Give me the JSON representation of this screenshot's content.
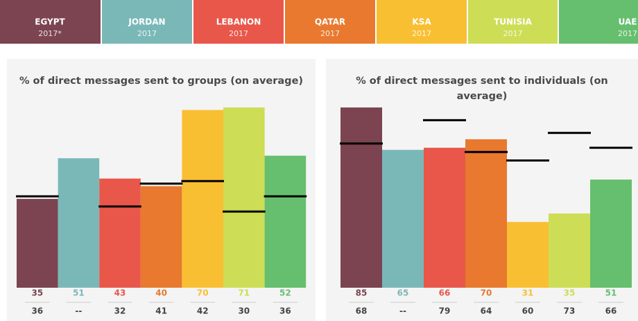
{
  "header": {
    "tiles": [
      {
        "name": "EGYPT",
        "year": "2017*",
        "color": "#7b4450"
      },
      {
        "name": "JORDAN",
        "year": "2017",
        "color": "#7ab8b8"
      },
      {
        "name": "LEBANON",
        "year": "2017",
        "color": "#e8574a"
      },
      {
        "name": "QATAR",
        "year": "2017",
        "color": "#e8792f"
      },
      {
        "name": "KSA",
        "year": "2017",
        "color": "#f9bf33"
      },
      {
        "name": "TUNISIA",
        "year": "2017",
        "color": "#cddd55"
      },
      {
        "name": "UAE",
        "year": "2017",
        "color": "#66bf6e"
      }
    ]
  },
  "chart_data": [
    {
      "type": "bar",
      "title": "% of direct messages sent to groups (on average)",
      "values": [
        35,
        51,
        43,
        40,
        70,
        71,
        52
      ],
      "colors": [
        "#7b4450",
        "#7ab8b8",
        "#e8574a",
        "#e8792f",
        "#f9bf33",
        "#cddd55",
        "#66bf6e"
      ],
      "markers": [
        36,
        null,
        32,
        41,
        42,
        30,
        36
      ],
      "missing_label": "--",
      "ylim": [
        0,
        71
      ]
    },
    {
      "type": "bar",
      "title": "% of direct messages sent to individuals (on average)",
      "values": [
        85,
        65,
        66,
        70,
        31,
        35,
        51
      ],
      "colors": [
        "#7b4450",
        "#7ab8b8",
        "#e8574a",
        "#e8792f",
        "#f9bf33",
        "#cddd55",
        "#66bf6e"
      ],
      "markers": [
        68,
        null,
        79,
        64,
        60,
        73,
        66
      ],
      "missing_label": "--",
      "ylim": [
        0,
        85
      ]
    }
  ]
}
